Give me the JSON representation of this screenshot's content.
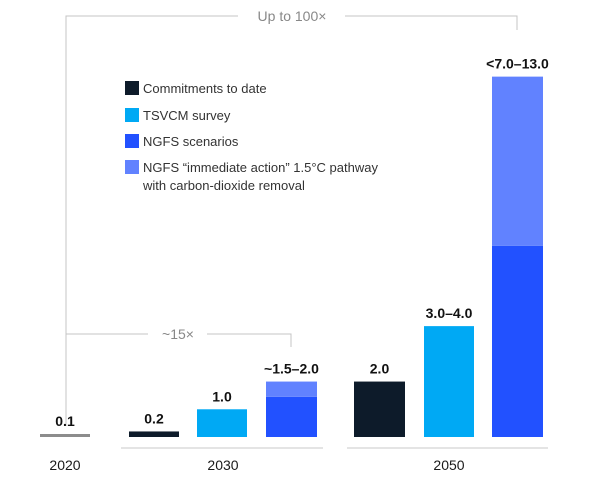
{
  "chart_data": {
    "type": "bar",
    "stacked": true,
    "groups": [
      {
        "name": "2020",
        "bars": [
          {
            "series": "Commitments to date",
            "value": 0.1,
            "label": "0.1"
          }
        ]
      },
      {
        "name": "2030",
        "bars": [
          {
            "series": "Commitments to date",
            "value": 0.2,
            "label": "0.2"
          },
          {
            "series": "TSVCM survey",
            "value": 1.0,
            "label": "1.0"
          },
          {
            "series": "NGFS scenarios",
            "segments": [
              {
                "series": "NGFS scenarios",
                "value": 1.45
              },
              {
                "series": "NGFS “immediate action” 1.5°C pathway with carbon-dioxide removal",
                "value": 0.55
              }
            ],
            "label": "~1.5–2.0"
          }
        ]
      },
      {
        "name": "2050",
        "bars": [
          {
            "series": "Commitments to date",
            "value": 2.0,
            "label": "2.0"
          },
          {
            "series": "TSVCM survey",
            "value": 4.0,
            "label": "3.0–4.0"
          },
          {
            "series": "NGFS scenarios",
            "segments": [
              {
                "series": "NGFS scenarios",
                "value": 6.9
              },
              {
                "series": "NGFS “immediate action” 1.5°C pathway with carbon-dioxide removal",
                "value": 6.1
              }
            ],
            "label": "<7.0–13.0"
          }
        ]
      }
    ],
    "legend": {
      "placement": "top-left",
      "items": [
        {
          "label": "Commitments to date",
          "color": "#0d1b2a"
        },
        {
          "label": "TSVCM  survey",
          "color": "#00a9f4"
        },
        {
          "label": "NGFS  scenarios",
          "color": "#2251ff"
        },
        {
          "label": "NGFS “immediate action” 1.5°C pathway",
          "label2": "with carbon-dioxide removal",
          "color": "#6182ff"
        }
      ]
    },
    "colors": {
      "Commitments to date": "#0d1b2a",
      "TSVCM survey": "#00a9f4",
      "NGFS scenarios": "#2251ff",
      "NGFS “immediate action” 1.5°C pathway with carbon-dioxide removal": "#6182ff",
      "baseline_2020": "#8c8c8c"
    },
    "annotations": [
      {
        "text": "Up to 100×",
        "from": "2020",
        "to": "2050 NGFS"
      },
      {
        "text": "~15×",
        "from": "2020",
        "to": "2030 NGFS"
      }
    ],
    "ylim": [
      0,
      13.6
    ],
    "grid": false
  }
}
